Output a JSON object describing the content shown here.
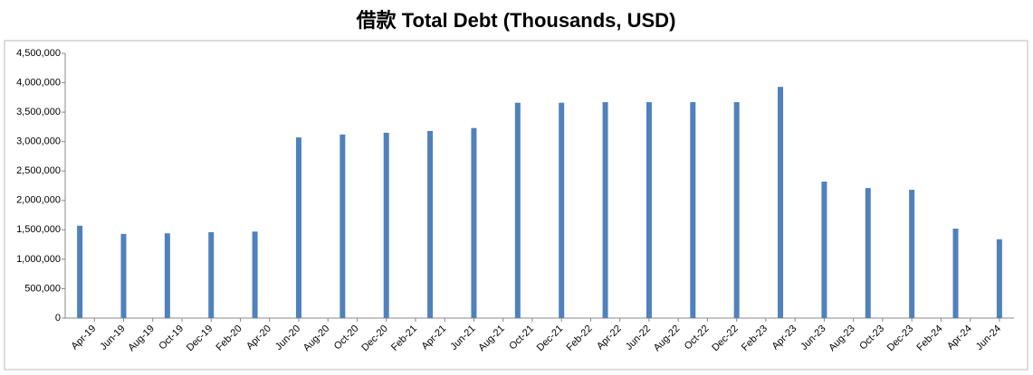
{
  "chart_data": {
    "type": "bar",
    "title": "借款 Total Debt (Thousands, USD)",
    "x": [
      "2019-03",
      "2019-06",
      "2019-09",
      "2019-12",
      "2020-03",
      "2020-06",
      "2020-09",
      "2020-12",
      "2021-03",
      "2021-06",
      "2021-09",
      "2021-12",
      "2022-03",
      "2022-06",
      "2022-09",
      "2022-12",
      "2023-03",
      "2023-06",
      "2023-09",
      "2023-12",
      "2024-03",
      "2024-06"
    ],
    "values": [
      1570000,
      1430000,
      1440000,
      1460000,
      1470000,
      3070000,
      3120000,
      3150000,
      3180000,
      3230000,
      3660000,
      3660000,
      3670000,
      3670000,
      3670000,
      3670000,
      3930000,
      2320000,
      2210000,
      2180000,
      1520000,
      1340000
    ],
    "color": "#4f81bd",
    "xlim": [
      "2019-02",
      "2024-07"
    ],
    "xticks": [
      {
        "value": "2019-04",
        "label": "Apr-19"
      },
      {
        "value": "2019-06",
        "label": "Jun-19"
      },
      {
        "value": "2019-08",
        "label": "Aug-19"
      },
      {
        "value": "2019-10",
        "label": "Oct-19"
      },
      {
        "value": "2019-12",
        "label": "Dec-19"
      },
      {
        "value": "2020-02",
        "label": "Feb-20"
      },
      {
        "value": "2020-04",
        "label": "Apr-20"
      },
      {
        "value": "2020-06",
        "label": "Jun-20"
      },
      {
        "value": "2020-08",
        "label": "Aug-20"
      },
      {
        "value": "2020-10",
        "label": "Oct-20"
      },
      {
        "value": "2020-12",
        "label": "Dec-20"
      },
      {
        "value": "2021-02",
        "label": "Feb-21"
      },
      {
        "value": "2021-04",
        "label": "Apr-21"
      },
      {
        "value": "2021-06",
        "label": "Jun-21"
      },
      {
        "value": "2021-08",
        "label": "Aug-21"
      },
      {
        "value": "2021-10",
        "label": "Oct-21"
      },
      {
        "value": "2021-12",
        "label": "Dec-21"
      },
      {
        "value": "2022-02",
        "label": "Feb-22"
      },
      {
        "value": "2022-04",
        "label": "Apr-22"
      },
      {
        "value": "2022-06",
        "label": "Jun-22"
      },
      {
        "value": "2022-08",
        "label": "Aug-22"
      },
      {
        "value": "2022-10",
        "label": "Oct-22"
      },
      {
        "value": "2022-12",
        "label": "Dec-22"
      },
      {
        "value": "2023-02",
        "label": "Feb-23"
      },
      {
        "value": "2023-04",
        "label": "Apr-23"
      },
      {
        "value": "2023-06",
        "label": "Jun-23"
      },
      {
        "value": "2023-08",
        "label": "Aug-23"
      },
      {
        "value": "2023-10",
        "label": "Oct-23"
      },
      {
        "value": "2023-12",
        "label": "Dec-23"
      },
      {
        "value": "2024-02",
        "label": "Feb-24"
      },
      {
        "value": "2024-04",
        "label": "Apr-24"
      },
      {
        "value": "2024-06",
        "label": "Jun-24"
      }
    ],
    "ylim": [
      0,
      4500000
    ],
    "yticks": [
      0,
      {
        "value": 500000,
        "label": "500,000"
      },
      {
        "value": 1000000,
        "label": "1,000,000"
      },
      {
        "value": 1500000,
        "label": "1,500,000"
      },
      {
        "value": 2000000,
        "label": "2,000,000"
      },
      {
        "value": 2500000,
        "label": "2,500,000"
      },
      {
        "value": 3000000,
        "label": "3,000,000"
      },
      {
        "value": 3500000,
        "label": "3,500,000"
      },
      {
        "value": 4000000,
        "label": "4,000,000"
      },
      {
        "value": 4500000,
        "label": "4,500,000"
      }
    ],
    "grid": false
  }
}
